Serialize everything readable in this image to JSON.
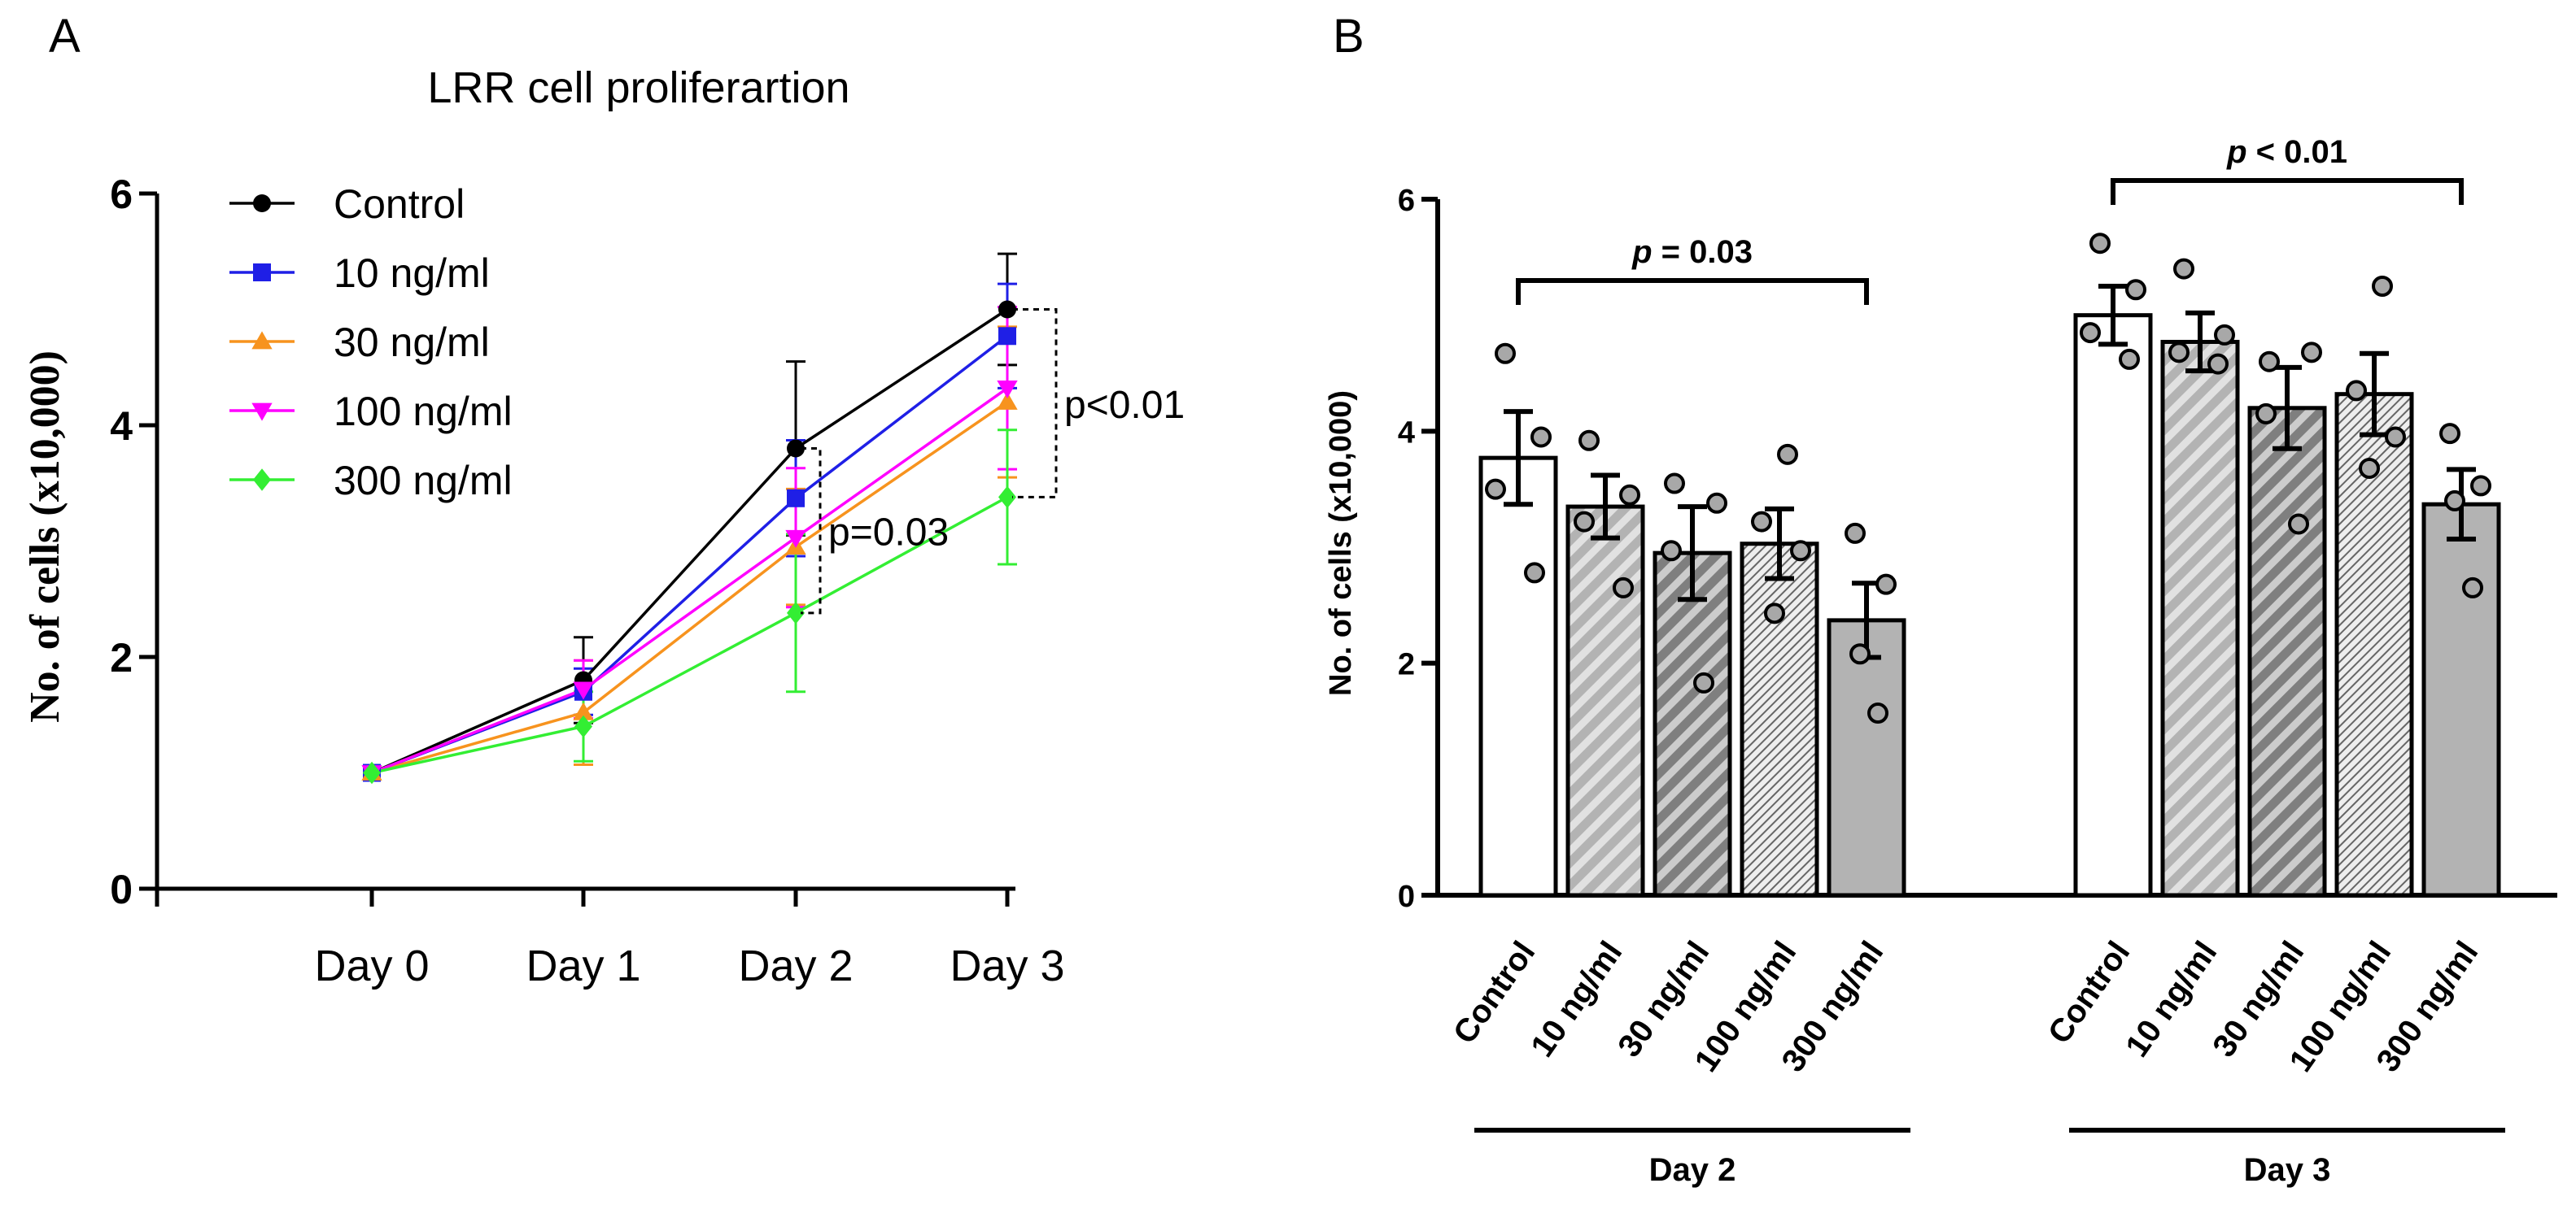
{
  "chart_data": [
    {
      "panel_label": "A",
      "type": "line",
      "title": "LRR cell proliferartion",
      "xlabel": "",
      "ylabel": "No. of cells (x10,000)",
      "categories": [
        "Day 0",
        "Day 1",
        "Day 2",
        "Day 3"
      ],
      "ylim": [
        0,
        6
      ],
      "yticks": [
        "0",
        "2",
        "4",
        "6"
      ],
      "legend_position": "top-left",
      "series": [
        {
          "name": "Control",
          "color": "#000000",
          "marker": "circle",
          "values": [
            1.0,
            1.8,
            3.8,
            5.0
          ],
          "errors": [
            0.0,
            0.37,
            0.75,
            0.48
          ]
        },
        {
          "name": "10 ng/ml",
          "color": "#1f1fe6",
          "marker": "square",
          "values": [
            1.0,
            1.7,
            3.37,
            4.77
          ],
          "errors": [
            0.0,
            0.2,
            0.5,
            0.45
          ]
        },
        {
          "name": "30 ng/ml",
          "color": "#f7931e",
          "marker": "triangle-up",
          "values": [
            1.0,
            1.52,
            2.95,
            4.2
          ],
          "errors": [
            0.0,
            0.45,
            0.5,
            0.65
          ]
        },
        {
          "name": "100 ng/ml",
          "color": "#ff00ff",
          "marker": "triangle-down",
          "values": [
            1.0,
            1.72,
            3.03,
            4.32
          ],
          "errors": [
            0.0,
            0.25,
            0.6,
            0.7
          ]
        },
        {
          "name": "300 ng/ml",
          "color": "#33ee33",
          "marker": "diamond",
          "values": [
            1.0,
            1.4,
            2.38,
            3.38
          ],
          "errors": [
            0.0,
            0.3,
            0.68,
            0.58
          ]
        }
      ],
      "annotations": [
        {
          "text": "p=0.03",
          "category": "Day 2",
          "from": 3.8,
          "to": 2.38
        },
        {
          "text": "p<0.01",
          "category": "Day 3",
          "from": 5.0,
          "to": 3.38
        }
      ]
    },
    {
      "panel_label": "B",
      "type": "bar",
      "xlabel": "",
      "ylabel": "No. of cells (x10,000)",
      "ylim": [
        0,
        6
      ],
      "yticks": [
        "0",
        "2",
        "4",
        "6"
      ],
      "categories": [
        "Control",
        "10 ng/ml",
        "30 ng/ml",
        "100 ng/ml",
        "300 ng/ml"
      ],
      "groups": [
        {
          "name": "Day 2",
          "p_label": "p",
          "p_value": " = 0.03",
          "values": [
            3.77,
            3.35,
            2.95,
            3.03,
            2.37
          ],
          "errors": [
            0.4,
            0.27,
            0.4,
            0.3,
            0.32
          ],
          "points": [
            [
              4.67,
              3.95,
              3.5,
              2.78
            ],
            [
              3.92,
              3.45,
              3.22,
              2.65
            ],
            [
              3.55,
              3.38,
              2.97,
              1.83
            ],
            [
              3.8,
              3.22,
              2.97,
              2.43
            ],
            [
              3.12,
              2.68,
              2.08,
              1.57
            ]
          ]
        },
        {
          "name": "Day 3",
          "p_label": "p",
          "p_value": " < 0.01",
          "values": [
            5.0,
            4.77,
            4.2,
            4.32,
            3.37
          ],
          "errors": [
            0.25,
            0.25,
            0.35,
            0.35,
            0.3
          ],
          "points": [
            [
              5.62,
              5.22,
              4.85,
              4.62
            ],
            [
              5.4,
              4.83,
              4.68,
              4.58
            ],
            [
              4.6,
              4.68,
              4.15,
              3.2
            ],
            [
              5.25,
              4.35,
              3.95,
              3.68
            ],
            [
              3.98,
              3.53,
              3.4,
              2.65
            ]
          ]
        }
      ],
      "bar_styles": [
        {
          "fill": "#ffffff",
          "pattern": "none"
        },
        {
          "fill": "#b3b3b3",
          "pattern": "wide-diagonal"
        },
        {
          "fill": "#7f7f7f",
          "pattern": "wide-diagonal"
        },
        {
          "fill": "#eeeeee",
          "pattern": "fine-diagonal"
        },
        {
          "fill": "#b3b3b3",
          "pattern": "none"
        }
      ]
    }
  ]
}
